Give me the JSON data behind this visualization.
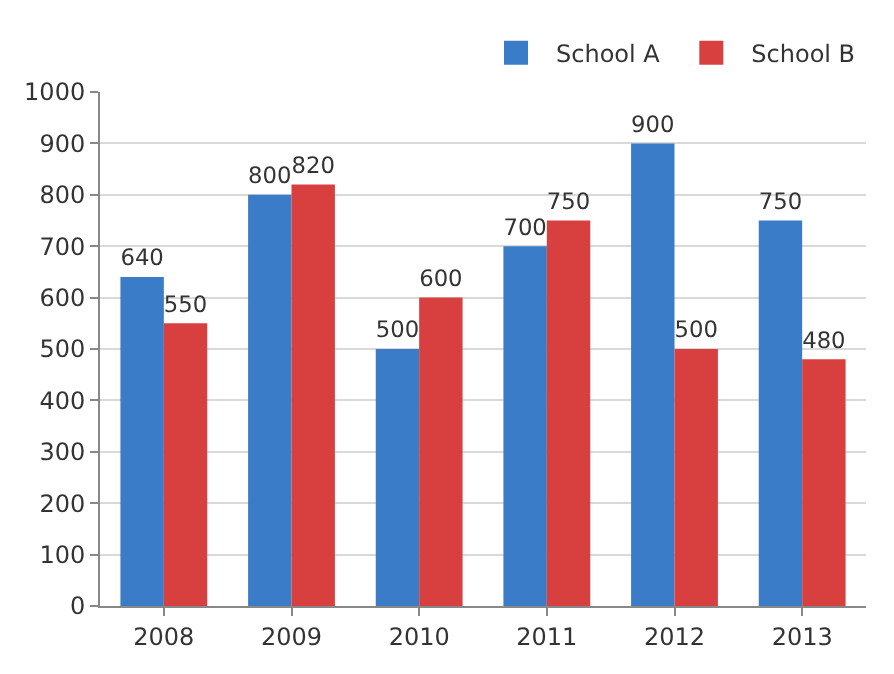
{
  "chart_data": {
    "type": "bar",
    "categories": [
      "2008",
      "2009",
      "2010",
      "2011",
      "2012",
      "2013"
    ],
    "series": [
      {
        "name": "School A",
        "color": "#3a7cc8",
        "values": [
          640,
          800,
          500,
          700,
          900,
          750
        ]
      },
      {
        "name": "School B",
        "color": "#d8403f",
        "values": [
          550,
          820,
          600,
          750,
          500,
          480
        ]
      }
    ],
    "ylim": [
      0,
      1000
    ],
    "yticks": [
      0,
      100,
      200,
      300,
      400,
      500,
      600,
      700,
      800,
      900,
      1000
    ],
    "grid": "y",
    "legend": "top right",
    "data_labels": true
  }
}
